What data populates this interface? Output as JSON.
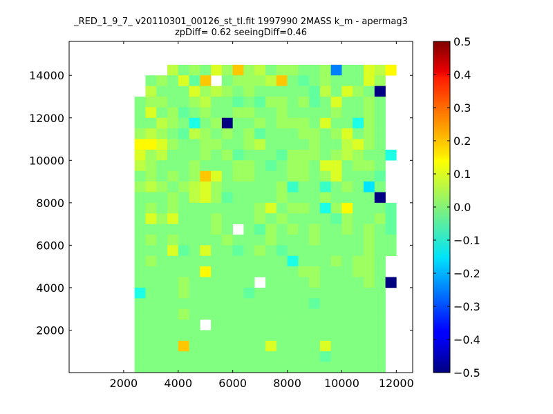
{
  "chart_data": {
    "type": "heatmap",
    "title_line1": "_RED_1_9_7_ v20110301_00126_st_tl.fit 1997990 2MASS k_m - apermag3",
    "title_line2": "zpDiff= 0.62 seeingDiff=0.46",
    "xlabel": "",
    "ylabel": "",
    "xlim": [
      0,
      12600
    ],
    "ylim": [
      0,
      15600
    ],
    "xticks": [
      2000,
      4000,
      6000,
      8000,
      10000,
      12000
    ],
    "yticks": [
      2000,
      4000,
      6000,
      8000,
      10000,
      12000,
      14000
    ],
    "colorbar": {
      "colormap": "jet",
      "vmin": -0.5,
      "vmax": 0.5,
      "ticks": [
        0.5,
        0.4,
        0.3,
        0.2,
        0.1,
        0.0,
        -0.1,
        -0.2,
        -0.3,
        -0.4,
        -0.5
      ],
      "tick_labels": [
        "0.5",
        "0.4",
        "0.3",
        "0.2",
        "0.1",
        "0.0",
        "−0.1",
        "−0.2",
        "−0.3",
        "−0.4",
        "−0.5"
      ]
    },
    "grid": {
      "x0": 0,
      "dx": 400,
      "ncols": 31,
      "y0": 0,
      "dy": 500,
      "nrows": 31,
      "row_order": "top-to-bottom",
      "legend": {
        "W": "no data (blank)",
        "A": 0.13,
        "B": 0.09,
        "C": 0.06,
        "D": 0.03,
        "E": 0.0,
        "F": -0.03,
        "G": -0.07,
        "H": -0.1,
        "I": -0.15,
        "J": -0.25,
        "K": -0.5,
        "L": 0.18,
        "M": 0.05
      },
      "rows": [
        "WWWWWWWWWWWWWWWWWWWWWWWWWWWWWWW",
        "WWWWWWWWWWWWWWWWWWWWWWWWWWWWWWW",
        "WWWWWWWWWCEDEBDLDCEDDEEDJEEBCAW",
        "WWWWWWWEDEBFLWEDDDCLEFEDEEEBDWW",
        "WWWWWWWCEEEBDCDEDEEEEEFCEBDEKWW",
        "WWWWWWEDDEEDCEEFEFDDEDFEBEEDEWW",
        "WWWWWWEBEDFEDEEDDEEDEEEEDEEDEWW",
        "WWWWWWEECDEHEDKEEDEDDDEBEEHDEWW",
        "WWWWWWDCDEFCDEDEDFEEEDDEDBEDEWW",
        "WWWWWWAABDEEDDEEDCEEEEDEECBDEWW",
        "WWWWWWBDCEEEDEDFEEEFDDDEDCDEEHW",
        "WWWWWWCDEEEDEEEDDEFEDDEBBEDDEWW",
        "WWWWWWEDEDEDLBEDDEEEDDEDBEEEFWW",
        "WWWWWWDCDEDCBDEEEEEDGEEGEDEIEWW",
        "WWWWWWEEEDECBDFEEEEDEEEDEEEEKWW",
        "WWWWWWEDEDEEEEEEEDBEDDEHDAEEEFW",
        "WWWWWWEBDBEEEDEEEDEDEEEEFDEEDFW",
        "WWWWWWEEEEEEEDEWEFDEDEDEEDEDEFW",
        "WWWWWWEDEDEEEEDEEEDEEEDEEEEDEEW",
        "WWWWWWEEEBFEBEEFEDEFEEEEEEEDEEW",
        "WWWWWWEDEEEEEEEEEEEEHEEEDEDDEWW",
        "WWWWWWEEEEEEAEEEEEEEEDDEEEDDEWW",
        "WWWWWWEEEEDEEEEEEWEEEEDEEEEDEKW",
        "WWWWWWHEEEDEEEEEFEEEEEEEEEEEEWW",
        "WWWWWWEEEEEEEEEEEEEEEEFEEEEEEWW",
        "WWWWWWEEEEDEEEEEEEEEEEEEEEEEEWW",
        "WWWWWWEEEEEEWEEEEEEEEEEEEEEEEWW",
        "WWWWWWEEEEEEEEEEEEEEEEEEEEEEEWW",
        "WWWWWWEEEELEEEEEEEBEEEEBEEEEEWW",
        "WWWWWWEEEEEEEEEEEEEEEEEFEEEEEWW",
        "WWWWWWEEEEEEEEEEEEEEEEEEEEEEEWW"
      ]
    }
  }
}
